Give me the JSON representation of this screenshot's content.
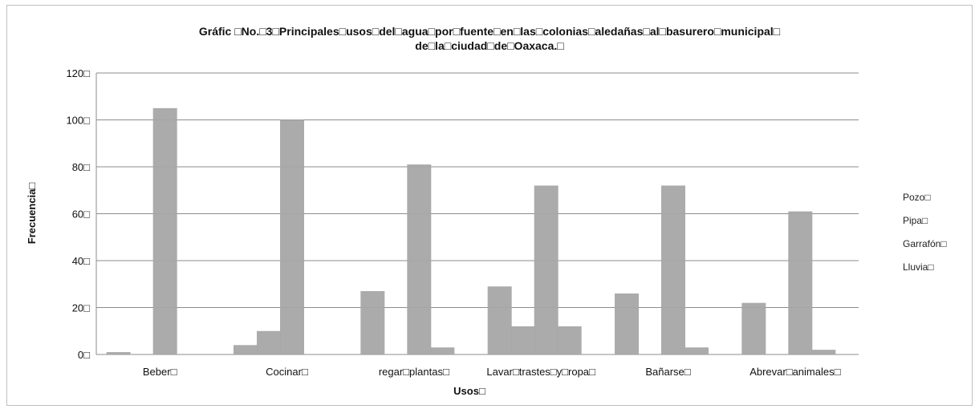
{
  "chart_data": {
    "type": "bar",
    "title": "Gráfic □No.□3□Principales□usos□del□agua□por□fuente□en□las□colonias□aledañas□al□basurero□municipal□",
    "subtitle": "de□la□ciudad□de□Oaxaca.□",
    "xlabel": "Usos□",
    "ylabel": "Frecuencia□",
    "ylim": [
      0,
      120
    ],
    "yticks": [
      0,
      20,
      40,
      60,
      80,
      100,
      120
    ],
    "ytick_labels": [
      "0□",
      "20□",
      "40□",
      "60□",
      "80□",
      "100□",
      "120□"
    ],
    "grid": true,
    "legend_position": "right",
    "categories": [
      "Beber□",
      "Cocinar□",
      "regar□plantas□",
      "Lavar□trastes□y□ropa□",
      "Bañarse□",
      "Abrevar□animales□"
    ],
    "series": [
      {
        "name": "Pozo□",
        "values": [
          1,
          4,
          27,
          29,
          26,
          22
        ]
      },
      {
        "name": "Pipa□",
        "values": [
          0,
          10,
          0,
          12,
          0,
          0
        ]
      },
      {
        "name": "Garrafón□",
        "values": [
          105,
          100,
          81,
          72,
          72,
          61
        ]
      },
      {
        "name": "Lluvia□",
        "values": [
          0,
          0,
          3,
          12,
          3,
          2
        ]
      }
    ],
    "bar_color": "#a6a6a6",
    "grid_color": "#8c8c8c"
  }
}
